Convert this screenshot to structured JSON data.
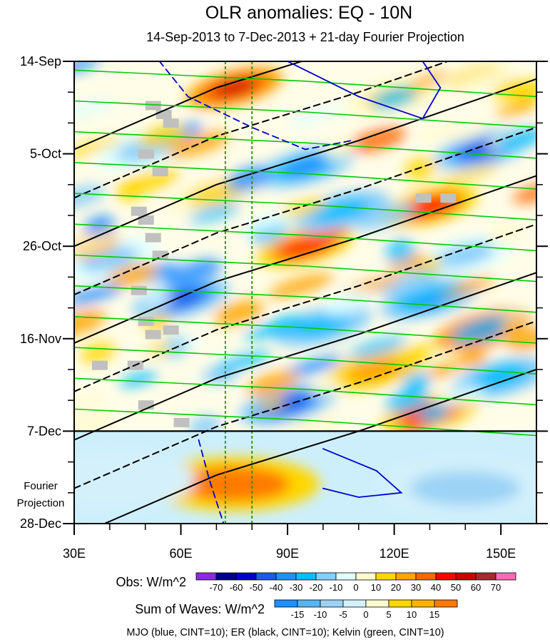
{
  "chart_data": {
    "type": "heatmap",
    "title": "OLR anomalies: EQ - 10N",
    "subtitle": "14-Sep-2013 to 7-Dec-2013 + 21-day Fourier Projection",
    "x_ticks": [
      "30E",
      "60E",
      "90E",
      "120E",
      "150E"
    ],
    "x_tick_values": [
      30,
      60,
      90,
      120,
      150
    ],
    "xlim": [
      30,
      160
    ],
    "y_ticks": [
      "14-Sep",
      "5-Oct",
      "26-Oct",
      "16-Nov",
      "7-Dec",
      "28-Dec"
    ],
    "y_tick_days": [
      0,
      21,
      42,
      63,
      84,
      105
    ],
    "ylim_days": [
      0,
      105
    ],
    "projection_start_day": 84,
    "projection_label_line1": "Fourier",
    "projection_label_line2": "Projection",
    "reference_longitudes": [
      72.5,
      80
    ],
    "obs_colorbar": {
      "label": "Obs: W/m^2",
      "levels": [
        "-70",
        "-60",
        "-50",
        "-40",
        "-30",
        "-20",
        "-10",
        "0",
        "10",
        "20",
        "30",
        "40",
        "50",
        "60",
        "70"
      ],
      "colors": [
        "#8a2be2",
        "#00008b",
        "#0000cd",
        "#1e5ae6",
        "#1e90ff",
        "#00bfff",
        "#87cefa",
        "#e0ffff",
        "#fffacd",
        "#ffd700",
        "#ffa500",
        "#ff6600",
        "#ff0000",
        "#cd0000",
        "#a52a2a",
        "#ff69b4"
      ]
    },
    "waves_colorbar": {
      "label": "Sum of Waves: W/m^2",
      "levels": [
        "-15",
        "-10",
        "-5",
        "0",
        "5",
        "10",
        "15"
      ],
      "colors": [
        "#1e90ff",
        "#56b4f0",
        "#9cd3f5",
        "#d4f1fb",
        "#fffacd",
        "#ffd700",
        "#ffb300",
        "#ff7a00"
      ]
    },
    "footer": "MJO (blue, CINT=10); ER (black, CINT=10); Kelvin (green, CINT=10)",
    "series_colors": {
      "mjo": "#0000cd",
      "er": "#000000",
      "kelvin": "#00cc00"
    },
    "missing_color": "#c0c0c0",
    "obs_anomaly_features": [
      {
        "lon": 75,
        "day": 6,
        "value": 50
      },
      {
        "lon": 95,
        "day": 24,
        "value": -40
      },
      {
        "lon": 145,
        "day": 20,
        "value": -50
      },
      {
        "lon": 130,
        "day": 33,
        "value": 40
      },
      {
        "lon": 95,
        "day": 42,
        "value": 40
      },
      {
        "lon": 60,
        "day": 54,
        "value": -50
      },
      {
        "lon": 130,
        "day": 54,
        "value": -40
      },
      {
        "lon": 145,
        "day": 61,
        "value": 50
      },
      {
        "lon": 100,
        "day": 60,
        "value": -30
      },
      {
        "lon": 115,
        "day": 70,
        "value": 30
      },
      {
        "lon": 90,
        "day": 78,
        "value": -50
      },
      {
        "lon": 130,
        "day": 80,
        "value": 40
      },
      {
        "lon": 150,
        "day": 72,
        "value": -30
      },
      {
        "lon": 105,
        "day": 34,
        "value": -30
      },
      {
        "lon": 50,
        "day": 20,
        "value": -20
      },
      {
        "lon": 120,
        "day": 8,
        "value": 20
      },
      {
        "lon": 70,
        "day": 30,
        "value": 20
      },
      {
        "lon": 40,
        "day": 45,
        "value": -20
      },
      {
        "lon": 140,
        "day": 44,
        "value": -20
      }
    ],
    "fourier_projection_features": [
      {
        "lon": 75,
        "day": 96,
        "value": 15
      },
      {
        "lon": 140,
        "day": 97,
        "value": -10
      },
      {
        "lon": 40,
        "day": 95,
        "value": -5
      }
    ]
  }
}
